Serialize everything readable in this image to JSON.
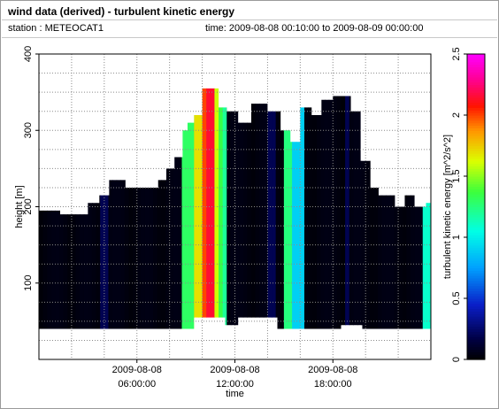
{
  "header": {
    "title": "wind data (derived) - turbulent kinetic energy",
    "station_label": "station : METEOCAT1",
    "time_label": "time: 2009-08-08 00:10:00 to 2009-08-09 00:00:00"
  },
  "chart_data": {
    "type": "heatmap",
    "title": "wind data (derived) - turbulent kinetic energy",
    "xlabel": "time",
    "ylabel": "height [m]",
    "colorbar_label": "turbulent kinetic energy [m^2/s^2]",
    "colormap": "black-navy-blue-cyan-green-yellow-red-magenta",
    "xlim_hours": [
      0,
      24
    ],
    "ylim": [
      0,
      400
    ],
    "clim": [
      0,
      2.5
    ],
    "x_ticks": [
      {
        "hour": 6,
        "line1": "2009-08-08",
        "line2": "06:00:00"
      },
      {
        "hour": 12,
        "line1": "2009-08-08",
        "line2": "12:00:00"
      },
      {
        "hour": 18,
        "line1": "2009-08-08",
        "line2": "18:00:00"
      }
    ],
    "y_ticks": [
      {
        "value": 100,
        "label": "100"
      },
      {
        "value": 200,
        "label": "200"
      },
      {
        "value": 300,
        "label": "300"
      },
      {
        "value": 400,
        "label": "400"
      }
    ],
    "colorbar_ticks": [
      {
        "value": 0,
        "label": "0"
      },
      {
        "value": 0.5,
        "label": "0.5"
      },
      {
        "value": 1,
        "label": "1"
      },
      {
        "value": 1.5,
        "label": "1.5"
      },
      {
        "value": 2,
        "label": "2"
      },
      {
        "value": 2.5,
        "label": "2.5"
      }
    ],
    "column_profile": {
      "description": "top / bottom of measured data (height, m) versus time (hours after 2009-08-08 00:00)",
      "top": [
        [
          0,
          195
        ],
        [
          1.3,
          190
        ],
        [
          3.0,
          205
        ],
        [
          3.7,
          215
        ],
        [
          4.3,
          235
        ],
        [
          5.3,
          225
        ],
        [
          7.3,
          235
        ],
        [
          7.8,
          250
        ],
        [
          8.3,
          265
        ],
        [
          8.8,
          300
        ],
        [
          9.1,
          310
        ],
        [
          9.5,
          320
        ],
        [
          10.0,
          355
        ],
        [
          10.5,
          355
        ],
        [
          11.0,
          330
        ],
        [
          11.5,
          325
        ],
        [
          12.2,
          310
        ],
        [
          13.0,
          335
        ],
        [
          14.0,
          325
        ],
        [
          14.8,
          300
        ],
        [
          15.4,
          285
        ],
        [
          16.0,
          330
        ],
        [
          16.7,
          320
        ],
        [
          17.3,
          340
        ],
        [
          18.0,
          345
        ],
        [
          19.1,
          325
        ],
        [
          19.7,
          260
        ],
        [
          20.3,
          225
        ],
        [
          20.8,
          215
        ],
        [
          21.8,
          200
        ],
        [
          22.4,
          215
        ],
        [
          23.0,
          200
        ],
        [
          23.7,
          205
        ]
      ],
      "bottom": [
        [
          0,
          40
        ],
        [
          3.8,
          40
        ],
        [
          4.1,
          40
        ],
        [
          7.6,
          40
        ],
        [
          9.5,
          55
        ],
        [
          10.2,
          55
        ],
        [
          11.4,
          45
        ],
        [
          12.2,
          55
        ],
        [
          13.0,
          55
        ],
        [
          14.1,
          55
        ],
        [
          14.6,
          40
        ],
        [
          16.7,
          40
        ],
        [
          18.5,
          45
        ],
        [
          19.8,
          40
        ],
        [
          23.7,
          40
        ]
      ]
    },
    "high_value_bands": [
      {
        "hour_start": 8.8,
        "hour_end": 9.5,
        "value": 1.3
      },
      {
        "hour_start": 9.5,
        "hour_end": 10.0,
        "value": 1.7
      },
      {
        "hour_start": 10.0,
        "hour_end": 10.3,
        "value": 2.0
      },
      {
        "hour_start": 10.3,
        "hour_end": 10.55,
        "value": 2.15
      },
      {
        "hour_start": 10.55,
        "hour_end": 10.8,
        "value": 1.6
      },
      {
        "hour_start": 10.8,
        "hour_end": 11.1,
        "value": 1.35
      },
      {
        "hour_start": 11.1,
        "hour_end": 11.5,
        "value": 1.2
      },
      {
        "hour_start": 15.0,
        "hour_end": 15.5,
        "value": 1.25
      },
      {
        "hour_start": 15.5,
        "hour_end": 16.2,
        "value": 0.9
      },
      {
        "hour_start": 23.5,
        "hour_end": 24.0,
        "value": 1.1
      }
    ]
  }
}
